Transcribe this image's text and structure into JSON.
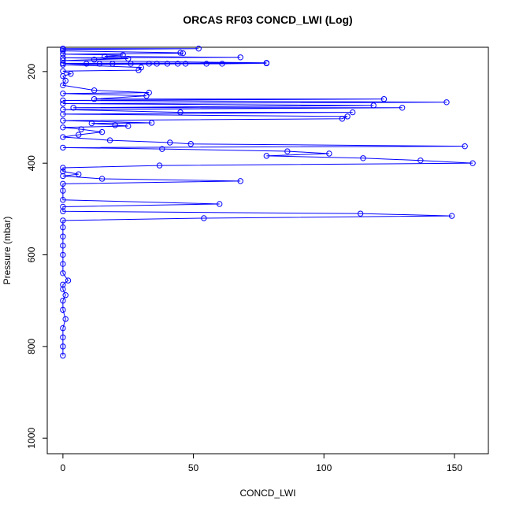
{
  "chart_data": {
    "type": "line",
    "markers": true,
    "title": "ORCAS RF03 CONCD_LWI (Log)",
    "x_label": "CONCD_LWI",
    "y_label": "Pressure (mbar)",
    "xlim": [
      -6,
      163
    ],
    "ylim": [
      147,
      1034
    ],
    "y_reversed": true,
    "xticks": [
      0,
      50,
      100,
      150
    ],
    "yticks": [
      200,
      400,
      600,
      800,
      1000
    ],
    "series": [
      {
        "color": "#0000ff",
        "x": [
          0,
          52,
          0,
          0,
          45,
          46,
          0,
          23,
          16,
          68,
          0,
          25,
          12,
          0,
          78,
          0,
          9,
          14,
          19,
          26,
          33,
          36,
          40,
          44,
          47,
          55,
          61,
          78,
          0,
          30,
          29,
          0,
          3,
          0,
          1,
          0,
          12,
          33,
          0,
          32,
          12,
          123,
          0,
          147,
          0,
          119,
          4,
          130,
          0,
          45,
          111,
          0,
          109,
          107,
          0,
          34,
          11,
          20,
          25,
          0,
          7,
          15,
          6,
          0,
          18,
          41,
          49,
          154,
          0,
          38,
          86,
          102,
          78,
          115,
          137,
          157,
          37,
          0,
          0,
          6,
          0,
          15,
          68,
          0,
          0,
          0,
          60,
          0,
          0,
          114,
          149,
          54,
          0,
          0,
          0,
          0,
          0,
          0,
          0,
          2,
          0,
          0,
          1,
          0,
          0,
          1,
          0,
          0,
          0,
          0
        ],
        "y": [
          150,
          150,
          152,
          155,
          159,
          160,
          162,
          164,
          167,
          169,
          170,
          172,
          174,
          176,
          181,
          182,
          183,
          183,
          183,
          183,
          183,
          183,
          183,
          183,
          183,
          183,
          183,
          182,
          185,
          191,
          197,
          199,
          205,
          210,
          220,
          230,
          241,
          246,
          248,
          253,
          260,
          260,
          263,
          267,
          270,
          274,
          279,
          279,
          283,
          289,
          289,
          293,
          298,
          303,
          307,
          312,
          313,
          317,
          319,
          322,
          326,
          332,
          338,
          343,
          350,
          355,
          358,
          363,
          366,
          369,
          374,
          379,
          384,
          389,
          394,
          400,
          405,
          410,
          418,
          424,
          428,
          434,
          439,
          445,
          460,
          480,
          489,
          495,
          505,
          510,
          515,
          520,
          525,
          540,
          560,
          580,
          600,
          620,
          640,
          656,
          665,
          675,
          688,
          700,
          720,
          740,
          760,
          780,
          800,
          820
        ]
      }
    ]
  }
}
